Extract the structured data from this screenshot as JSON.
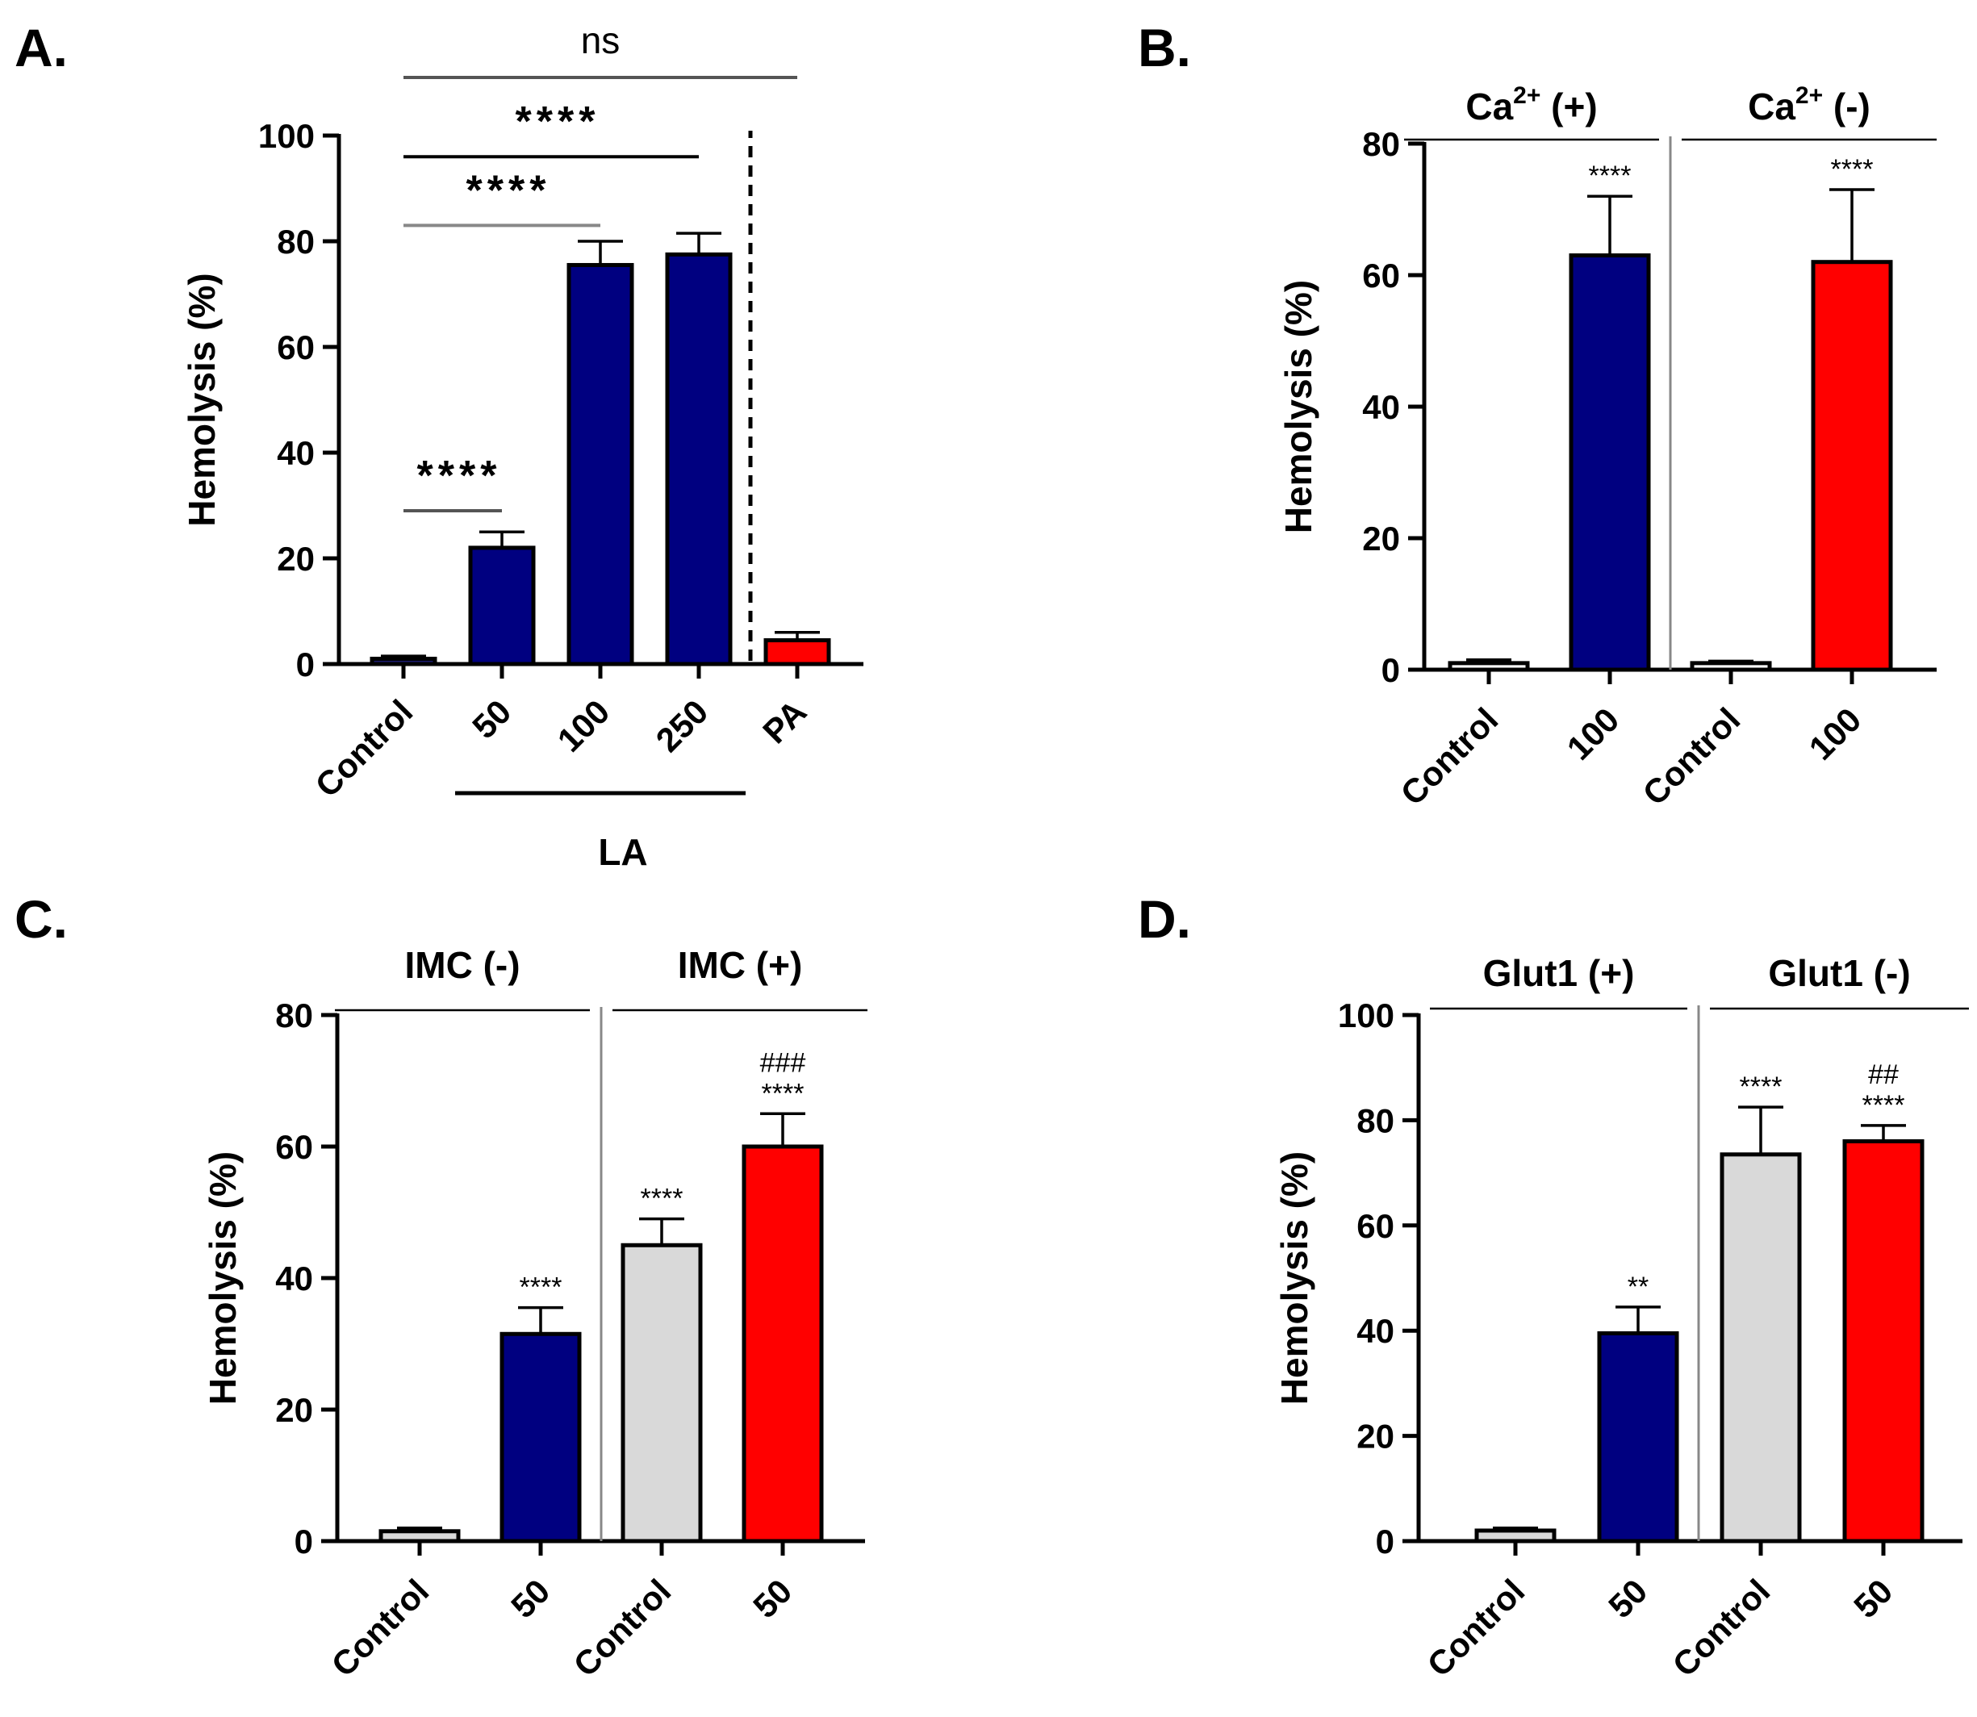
{
  "chart_data": [
    {
      "id": "A",
      "panel_label": "A.",
      "type": "bar",
      "ylabel": "Hemolysis (%)",
      "ylim": [
        0,
        100
      ],
      "yticks": [
        0,
        20,
        40,
        60,
        80,
        100
      ],
      "categories": [
        "Control",
        "50",
        "100",
        "250",
        "PA"
      ],
      "values": [
        1,
        22,
        75.5,
        77.5,
        4.5
      ],
      "errors": [
        0.5,
        3,
        4.5,
        4,
        1.5
      ],
      "colors": [
        "#1a1a6e",
        "#000080",
        "#000080",
        "#000080",
        "#ff0000"
      ],
      "group_label": "LA",
      "group_categories": [
        "50",
        "100",
        "250"
      ],
      "comparisons": [
        {
          "from": "Control",
          "to": "50",
          "label": "****",
          "y": 29,
          "line_color": "#555555"
        },
        {
          "from": "Control",
          "to": "100",
          "label": "****",
          "y": 83,
          "line_color": "#888888"
        },
        {
          "from": "Control",
          "to": "250",
          "label": "****",
          "y": 96,
          "line_color": "#000000"
        },
        {
          "from": "Control",
          "to": "PA",
          "label": "ns",
          "y": 111,
          "line_color": "#555555"
        }
      ],
      "separator": "dashed line before PA"
    },
    {
      "id": "B",
      "panel_label": "B.",
      "type": "bar",
      "ylabel": "Hemolysis (%)",
      "ylim": [
        0,
        80
      ],
      "yticks": [
        0,
        20,
        40,
        60,
        80
      ],
      "categories": [
        "Control",
        "100",
        "Control",
        "100"
      ],
      "values": [
        1,
        63,
        1,
        62
      ],
      "errors": [
        0.5,
        9,
        0.3,
        11
      ],
      "colors": [
        "#ffffff",
        "#000080",
        "#ffffff",
        "#ff0000"
      ],
      "annotations": [
        "",
        "****",
        "",
        "****"
      ],
      "groups": [
        {
          "label_base": "Ca",
          "label_sup": "2+",
          "label_tail": " (+)",
          "categories": [
            0,
            1
          ]
        },
        {
          "label_base": "Ca",
          "label_sup": "2+",
          "label_tail": " (-)",
          "categories": [
            2,
            3
          ]
        }
      ]
    },
    {
      "id": "C",
      "panel_label": "C.",
      "type": "bar",
      "ylabel": "Hemolysis (%)",
      "ylim": [
        0,
        80
      ],
      "yticks": [
        0,
        20,
        40,
        60,
        80
      ],
      "categories": [
        "Control",
        "50",
        "Control",
        "50"
      ],
      "values": [
        1.5,
        31.5,
        45,
        60
      ],
      "errors": [
        0.5,
        4,
        4,
        5
      ],
      "colors": [
        "#d9d9d9",
        "#000080",
        "#d9d9d9",
        "#ff0000"
      ],
      "annotations": [
        "",
        "****",
        "****",
        "****"
      ],
      "annotations_top": [
        "",
        "",
        "",
        "###"
      ],
      "groups": [
        {
          "label": "IMC (-)",
          "categories": [
            0,
            1
          ]
        },
        {
          "label": "IMC (+)",
          "categories": [
            2,
            3
          ]
        }
      ]
    },
    {
      "id": "D",
      "panel_label": "D.",
      "type": "bar",
      "ylabel": "Hemolysis (%)",
      "ylim": [
        0,
        100
      ],
      "yticks": [
        0,
        20,
        40,
        60,
        80,
        100
      ],
      "categories": [
        "Control",
        "50",
        "Control",
        "50"
      ],
      "values": [
        2,
        39.5,
        73.5,
        76
      ],
      "errors": [
        0.5,
        5,
        9,
        3
      ],
      "colors": [
        "#d9d9d9",
        "#000080",
        "#d9d9d9",
        "#ff0000"
      ],
      "annotations": [
        "",
        "**",
        "****",
        "****"
      ],
      "annotations_top": [
        "",
        "",
        "",
        "##"
      ],
      "groups": [
        {
          "label": "Glut1 (+)",
          "categories": [
            0,
            1
          ]
        },
        {
          "label": "Glut1 (-)",
          "categories": [
            2,
            3
          ]
        }
      ]
    }
  ]
}
